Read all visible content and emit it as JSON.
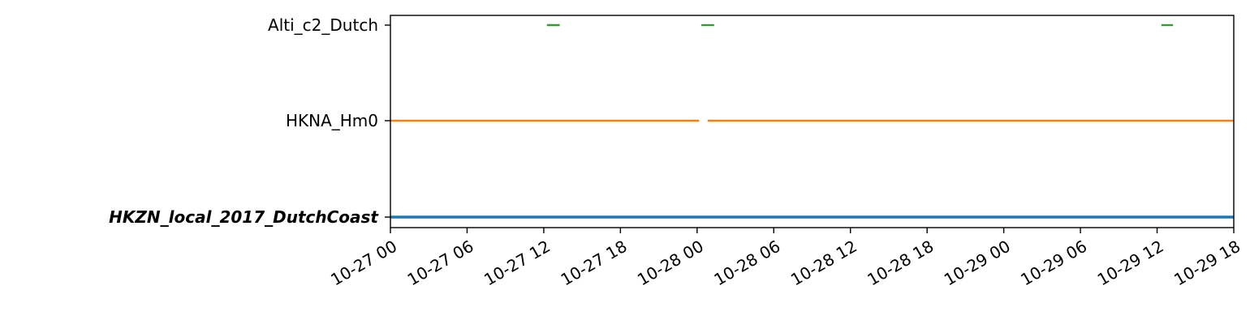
{
  "chart_data": {
    "type": "line",
    "title": "",
    "xlabel": "",
    "ylabel": "",
    "x_axis_type": "datetime",
    "xlim": [
      "2017-10-27T00:00",
      "2017-10-29T18:00"
    ],
    "x_tick_labels": [
      "10-27 00",
      "10-27 06",
      "10-27 12",
      "10-27 18",
      "10-28 00",
      "10-28 06",
      "10-28 12",
      "10-28 18",
      "10-29 00",
      "10-29 06",
      "10-29 12",
      "10-29 18"
    ],
    "categories": [
      "HKZN_local_2017_DutchCoast",
      "HKNA_Hm0",
      "Alti_c2_Dutch"
    ],
    "main_category": "HKZN_local_2017_DutchCoast",
    "grid": false,
    "series": [
      {
        "name": "HKZN_local_2017_DutchCoast",
        "color": "#1f77b4",
        "segments": [
          [
            "2017-10-27T00:00",
            "2017-10-29T18:00"
          ]
        ]
      },
      {
        "name": "HKNA_Hm0",
        "color": "#ff7f0e",
        "segments": [
          [
            "2017-10-27T00:00",
            "2017-10-28T00:10"
          ],
          [
            "2017-10-28T00:50",
            "2017-10-29T18:00"
          ]
        ]
      },
      {
        "name": "Alti_c2_Dutch",
        "color": "#2ca02c",
        "segments": [
          [
            "2017-10-27T12:15",
            "2017-10-27T13:15"
          ],
          [
            "2017-10-28T00:20",
            "2017-10-28T01:20"
          ],
          [
            "2017-10-29T12:20",
            "2017-10-29T13:15"
          ]
        ]
      }
    ]
  }
}
